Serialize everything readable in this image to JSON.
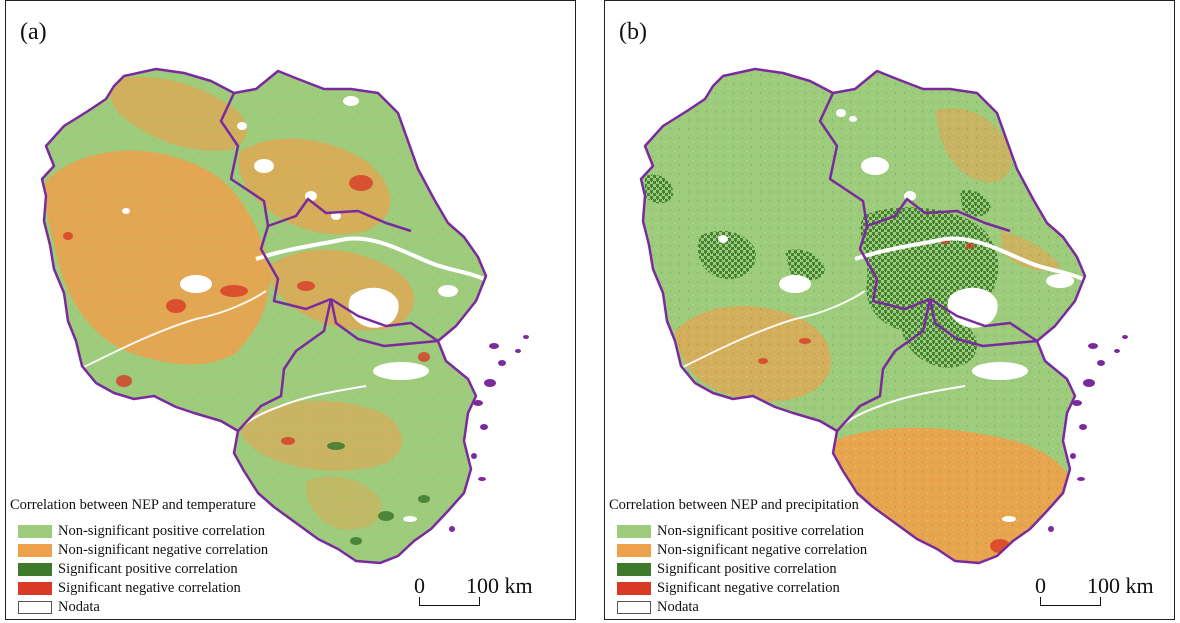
{
  "colors": {
    "non_sig_positive": "#9ccc7c",
    "non_sig_negative": "#eda14c",
    "sig_positive": "#3d7a2c",
    "sig_negative": "#d83a25",
    "nodata": "#ffffff",
    "boundary": "#7b2a9e"
  },
  "panels": [
    {
      "label": "(a)",
      "legend_title": "Correlation between NEP and temperature",
      "legend_items": [
        {
          "label": "Non-significant positive correlation",
          "color": "#9ccc7c"
        },
        {
          "label": "Non-significant negative correlation",
          "color": "#eda14c"
        },
        {
          "label": "Significant positive correlation",
          "color": "#3d7a2c"
        },
        {
          "label": "Significant negative correlation",
          "color": "#d83a25"
        },
        {
          "label": "Nodata",
          "color": "#ffffff"
        }
      ],
      "scale": {
        "zero": "0",
        "distance": "100 km"
      }
    },
    {
      "label": "(b)",
      "legend_title": "Correlation between NEP and  precipitation",
      "legend_items": [
        {
          "label": "Non-significant positive correlation",
          "color": "#9ccc7c"
        },
        {
          "label": "Non-significant negative correlation",
          "color": "#eda14c"
        },
        {
          "label": "Significant positive correlation",
          "color": "#3d7a2c"
        },
        {
          "label": "Significant negative correlation",
          "color": "#d83a25"
        },
        {
          "label": "Nodata",
          "color": "#ffffff"
        }
      ],
      "scale": {
        "zero": "0",
        "distance": "100 km"
      }
    }
  ]
}
